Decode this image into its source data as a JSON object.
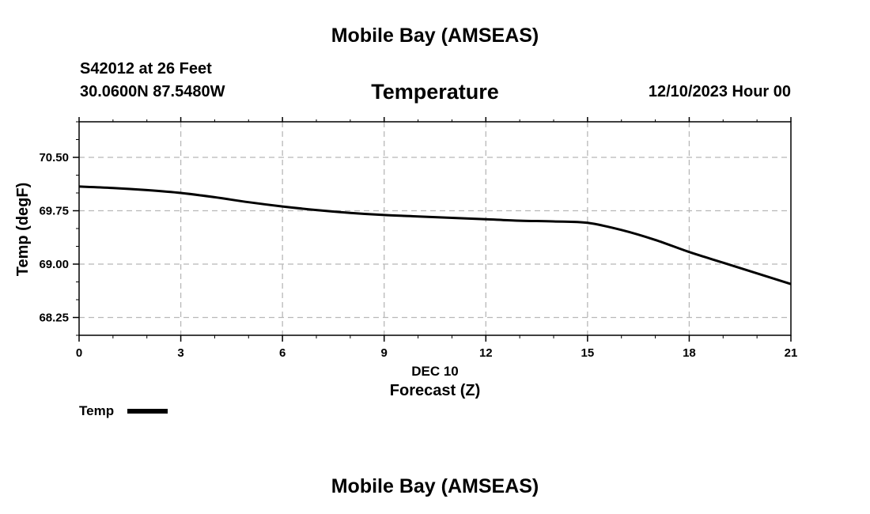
{
  "header": {
    "title": "Mobile Bay (AMSEAS)",
    "station": "S42012 at 26 Feet",
    "coords": "30.0600N  87.5480W",
    "date": "12/10/2023 Hour 00"
  },
  "footer": {
    "title": "Mobile Bay (AMSEAS)"
  },
  "colors": {
    "line": "#000000",
    "grid": "#b8b8b8"
  },
  "chart_data": {
    "type": "line",
    "title": "Temperature",
    "ylabel": "Temp (degF)",
    "xlabel_day": "DEC 10",
    "xlabel": "Forecast (Z)",
    "xlim": [
      0,
      21
    ],
    "ylim": [
      68.0,
      71.0
    ],
    "x_ticks": [
      0,
      3,
      6,
      9,
      12,
      15,
      18,
      21
    ],
    "x_tick_labels": [
      "0",
      "3",
      "6",
      "9",
      "12",
      "15",
      "18",
      "21"
    ],
    "y_ticks": [
      68.25,
      69.0,
      69.75,
      70.5
    ],
    "y_tick_labels": [
      "68.25",
      "69.00",
      "69.75",
      "70.50"
    ],
    "grid": true,
    "legend": {
      "position": "bottom-left",
      "label": "Temp"
    },
    "series": [
      {
        "name": "Temp",
        "x": [
          0,
          1,
          2,
          3,
          4,
          5,
          6,
          7,
          8,
          9,
          10,
          11,
          12,
          13,
          14,
          15,
          16,
          17,
          18,
          19,
          20,
          21
        ],
        "y": [
          70.09,
          70.07,
          70.04,
          70.0,
          69.94,
          69.87,
          69.81,
          69.76,
          69.72,
          69.69,
          69.67,
          69.65,
          69.63,
          69.61,
          69.6,
          69.58,
          69.48,
          69.34,
          69.17,
          69.02,
          68.87,
          68.72
        ]
      }
    ]
  }
}
